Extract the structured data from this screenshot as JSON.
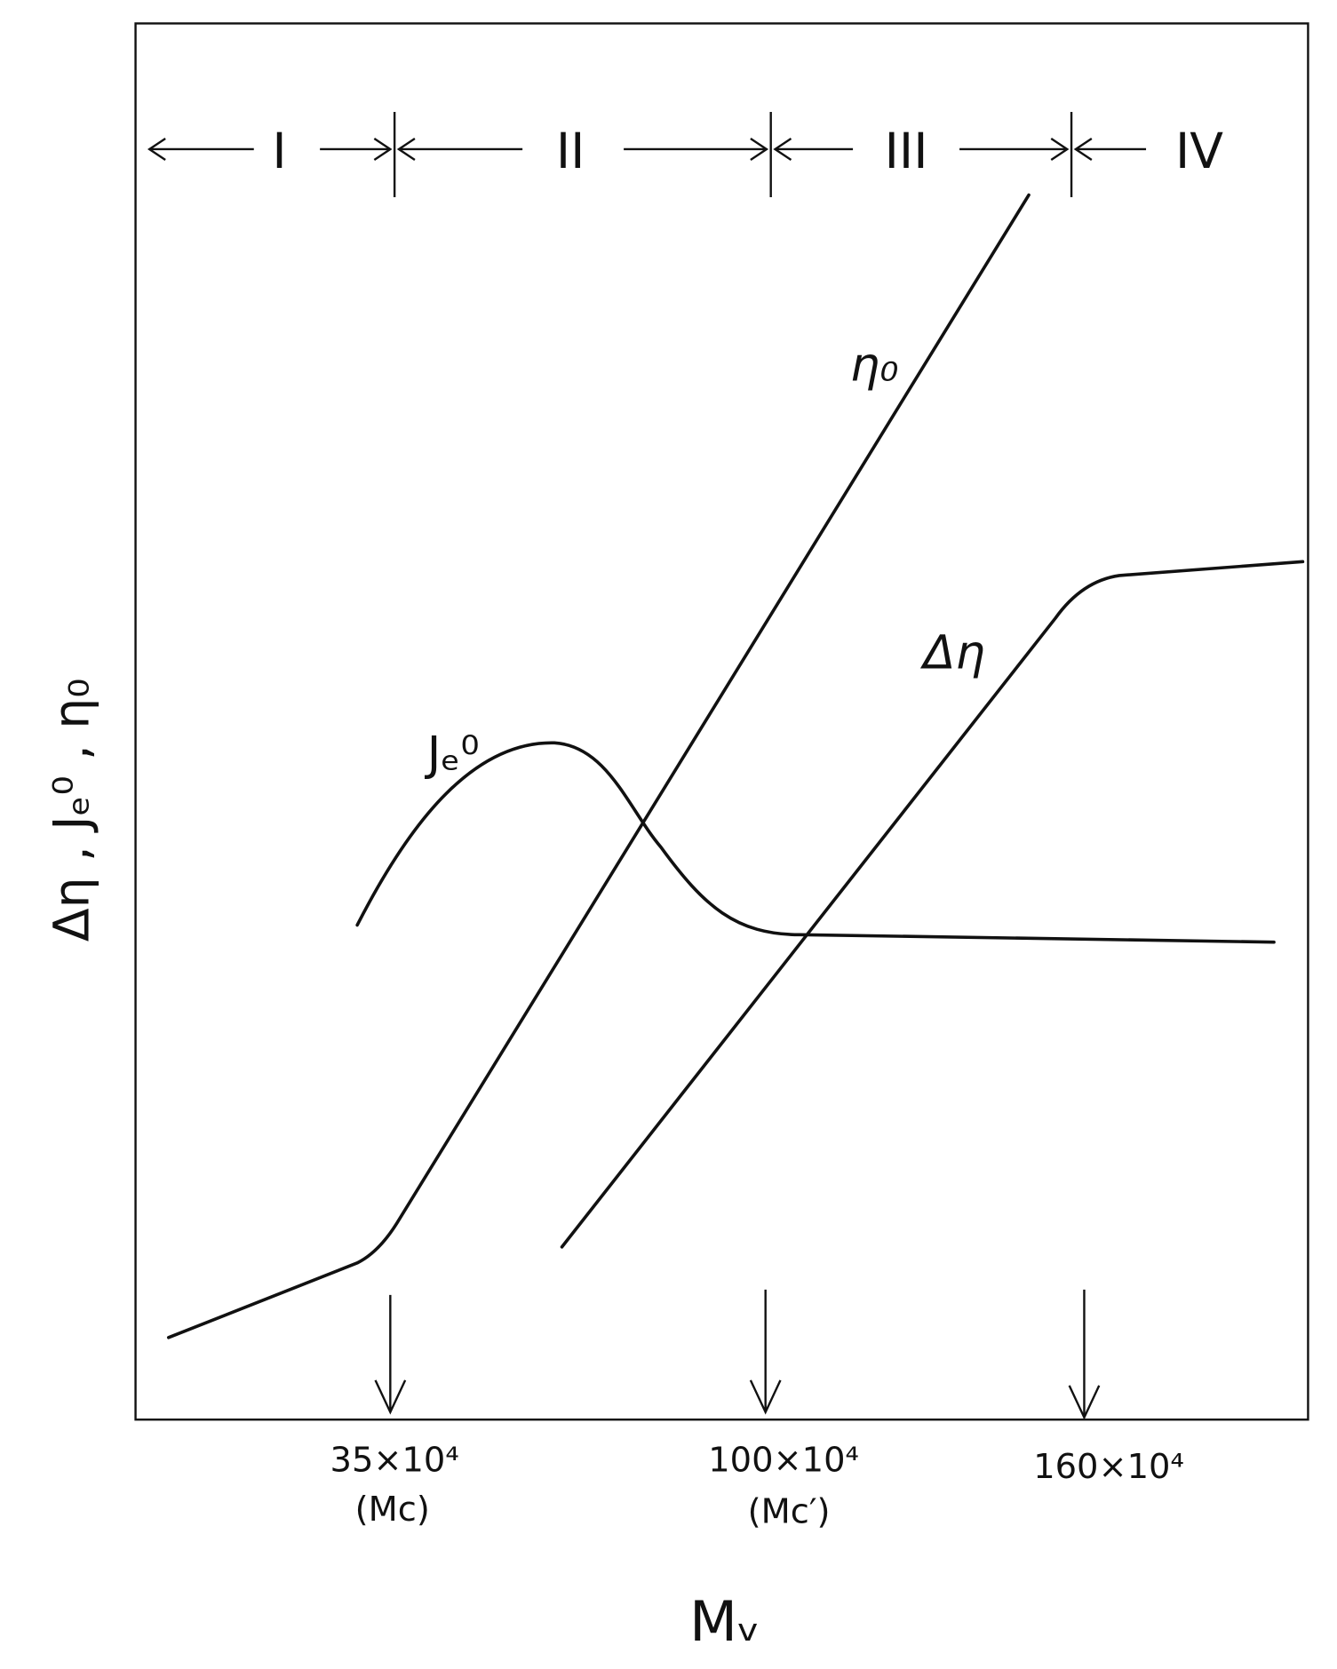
{
  "regions": [
    "I",
    "II",
    "III",
    "IV"
  ],
  "curves": {
    "eta0": "η₀",
    "delta_eta": "Δη",
    "je0": "Jₑ⁰"
  },
  "markers": [
    {
      "value": "35×10⁴",
      "note": "(Mc)"
    },
    {
      "value": "100×10⁴",
      "note": "(Mc′)"
    },
    {
      "value": "160×10⁴"
    }
  ],
  "x_axis_label": "Mᵥ",
  "y_axis_label": "Δη , Jₑ⁰ , η₀"
}
